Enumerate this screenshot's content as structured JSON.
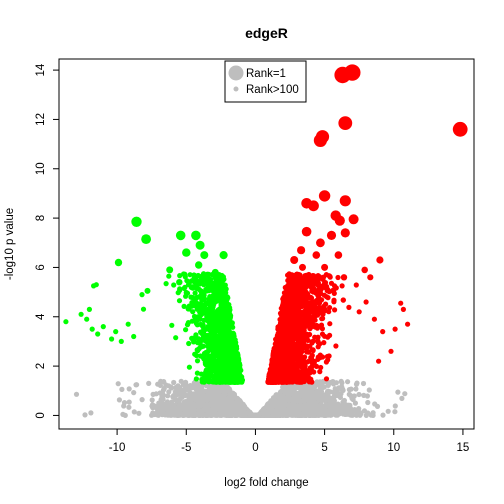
{
  "chart_data": {
    "type": "scatter",
    "title": "edgeR",
    "xlabel": "log2 fold change",
    "ylabel": "-log10 p value",
    "xlim": [
      -14.2,
      15.8
    ],
    "ylim": [
      -0.55,
      14.45
    ],
    "xticks": [
      -10,
      -5,
      0,
      5,
      10,
      15
    ],
    "yticks": [
      0,
      2,
      4,
      6,
      8,
      10,
      12,
      14
    ],
    "grid": false,
    "colors": {
      "up": "#ff0000",
      "down": "#00ff00",
      "ns": "#bebebe"
    },
    "legend": {
      "placement": "top-center",
      "entries": [
        {
          "label": "Rank=1",
          "color": "#bebebe",
          "size": "large"
        },
        {
          "label": "Rank>100",
          "color": "#bebebe",
          "size": "small"
        }
      ]
    },
    "highlight_points_up": [
      [
        6.3,
        13.8,
        1
      ],
      [
        7.0,
        13.9,
        1
      ],
      [
        14.8,
        11.6,
        2
      ],
      [
        6.5,
        11.85,
        3
      ],
      [
        4.7,
        11.15,
        4
      ],
      [
        4.85,
        11.3,
        4
      ],
      [
        5.0,
        8.9,
        9
      ],
      [
        6.5,
        8.7,
        10
      ],
      [
        4.2,
        8.5,
        11
      ],
      [
        3.7,
        8.6,
        12
      ],
      [
        5.8,
        8.1,
        14
      ],
      [
        6.1,
        7.9,
        15
      ],
      [
        7.1,
        7.95,
        16
      ],
      [
        3.7,
        7.45,
        20
      ],
      [
        5.5,
        7.3,
        22
      ],
      [
        6.5,
        7.4,
        23
      ],
      [
        4.7,
        7.0,
        28
      ],
      [
        3.3,
        6.7,
        34
      ],
      [
        2.8,
        6.3,
        40
      ],
      [
        4.4,
        6.5,
        45
      ],
      [
        6.0,
        6.5,
        47
      ],
      [
        9.0,
        6.3,
        55
      ],
      [
        5.0,
        6.0,
        60
      ],
      [
        3.4,
        6.0,
        62
      ],
      [
        4.6,
        5.6,
        70
      ],
      [
        7.9,
        5.9,
        72
      ],
      [
        6.4,
        5.6,
        80
      ],
      [
        8.3,
        5.6,
        85
      ]
    ],
    "highlight_points_down": [
      [
        -8.6,
        7.85,
        14
      ],
      [
        -7.9,
        7.15,
        18
      ],
      [
        -4.3,
        7.3,
        19
      ],
      [
        -5.4,
        7.3,
        20
      ],
      [
        -4.0,
        6.9,
        26
      ],
      [
        -5.0,
        6.6,
        32
      ],
      [
        -2.3,
        6.5,
        36
      ],
      [
        -3.7,
        6.5,
        38
      ],
      [
        -9.9,
        6.2,
        48
      ],
      [
        -4.1,
        6.1,
        52
      ],
      [
        -6.2,
        5.9,
        58
      ],
      [
        -2.9,
        5.8,
        62
      ],
      [
        -3.9,
        5.6,
        70
      ],
      [
        -5.5,
        5.4,
        78
      ],
      [
        -2.5,
        5.4,
        82
      ],
      [
        -4.6,
        5.2,
        88
      ],
      [
        -3.1,
        5.1,
        92
      ],
      [
        -7.8,
        5.05,
        95
      ]
    ],
    "isolated_points_up": [
      [
        10.5,
        4.55
      ],
      [
        10.7,
        4.3
      ],
      [
        11.0,
        3.7
      ],
      [
        10.1,
        3.5
      ],
      [
        9.2,
        3.4
      ],
      [
        8.0,
        4.6
      ],
      [
        7.5,
        4.2
      ],
      [
        8.6,
        3.9
      ],
      [
        9.8,
        2.6
      ],
      [
        8.9,
        2.2
      ]
    ],
    "isolated_points_down": [
      [
        -13.7,
        3.8
      ],
      [
        -12.6,
        4.1
      ],
      [
        -12.2,
        3.9
      ],
      [
        -11.8,
        3.5
      ],
      [
        -11.4,
        3.3
      ],
      [
        -11.0,
        3.6
      ],
      [
        -10.4,
        3.1
      ],
      [
        -9.7,
        3.0
      ],
      [
        -9.2,
        3.7
      ],
      [
        -11.5,
        5.3
      ],
      [
        -11.7,
        5.25
      ],
      [
        -8.2,
        4.9
      ],
      [
        -10.1,
        3.4
      ],
      [
        -12.0,
        4.3
      ],
      [
        -8.8,
        3.2
      ]
    ]
  }
}
